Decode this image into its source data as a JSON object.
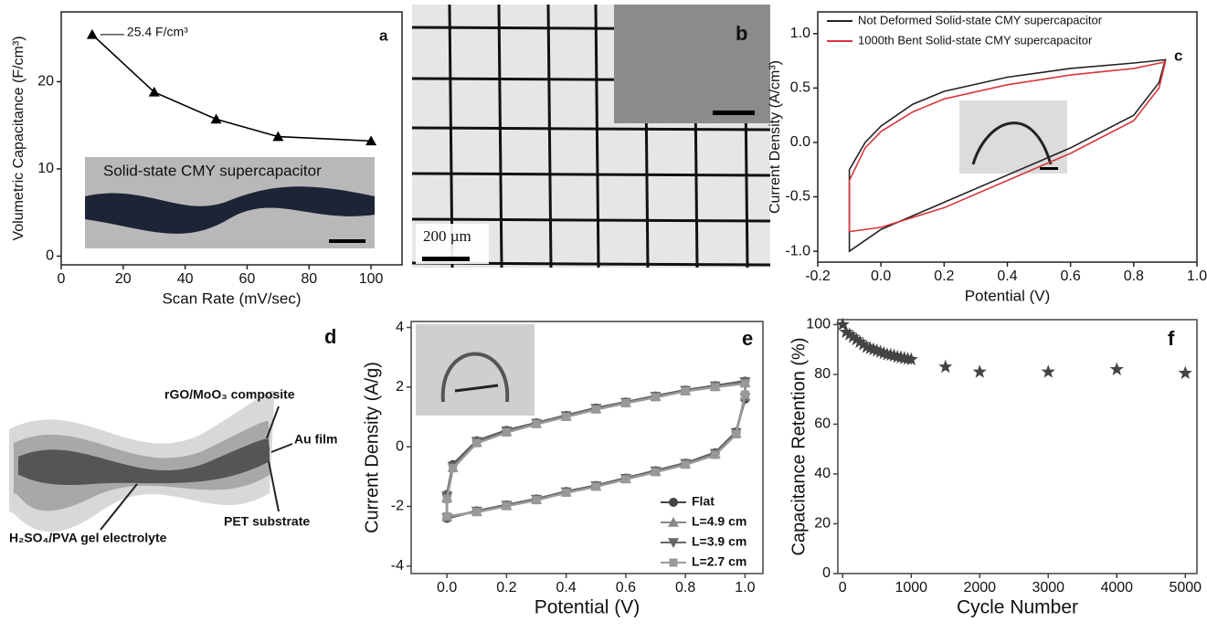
{
  "chart_data": [
    {
      "type": "line",
      "panel_label": "a",
      "xlabel": "Scan Rate (mV/sec)",
      "ylabel": "Volumetric Capacitance (F/cm³)",
      "x": [
        10,
        30,
        50,
        70,
        100
      ],
      "values": [
        25.4,
        18.8,
        15.7,
        13.7,
        13.2
      ],
      "color": "#000000",
      "marker": "triangle",
      "annotation": "25.4 F/cm³",
      "inset_label": "Solid-state CMY supercapacitor",
      "xlim": [
        0,
        110
      ],
      "xticks": [
        0,
        20,
        40,
        60,
        80,
        100
      ],
      "ylim": [
        -1,
        28
      ],
      "yticks": [
        0,
        10,
        20
      ]
    },
    {
      "type": "line",
      "panel_label": "c",
      "xlabel": "Potential (V)",
      "ylabel": "Current Density (A/cm³)",
      "x": [
        -0.1,
        -0.05,
        0,
        0.1,
        0.2,
        0.4,
        0.6,
        0.8,
        0.9,
        0.88,
        0.8,
        0.6,
        0.4,
        0.2,
        0,
        -0.1,
        -0.1
      ],
      "series": [
        {
          "name": "Not Deformed Solid-state CMY supercapacitor",
          "color": "#222222",
          "values": [
            -0.25,
            0,
            0.15,
            0.35,
            0.47,
            0.6,
            0.68,
            0.73,
            0.76,
            0.55,
            0.25,
            -0.05,
            -0.3,
            -0.55,
            -0.8,
            -1.0,
            -0.25
          ]
        },
        {
          "name": "1000th Bent Solid-state CMY supercapacitor",
          "color": "#d9363e",
          "values": [
            -0.35,
            -0.05,
            0.1,
            0.28,
            0.4,
            0.53,
            0.62,
            0.68,
            0.74,
            0.5,
            0.2,
            -0.1,
            -0.35,
            -0.6,
            -0.78,
            -0.82,
            -0.35
          ]
        }
      ],
      "legend": "upper left",
      "xlim": [
        -0.2,
        1.0
      ],
      "xticks": [
        -0.2,
        {
          "value": 0,
          "label": "0.0"
        },
        0.2,
        0.4,
        0.6,
        0.8,
        {
          "value": 1,
          "label": "1.0"
        }
      ],
      "ylim": [
        -1.1,
        1.2
      ],
      "yticks": [
        {
          "value": -1,
          "label": "-1.0"
        },
        -0.5,
        {
          "value": 0,
          "label": "0.0"
        },
        0.5,
        {
          "value": 1,
          "label": "1.0"
        }
      ]
    },
    {
      "type": "line",
      "panel_label": "e",
      "xlabel": "Potential (V)",
      "ylabel": "Current Density (A/g)",
      "x": [
        0,
        0.02,
        0.1,
        0.2,
        0.3,
        0.4,
        0.5,
        0.6,
        0.7,
        0.8,
        0.9,
        1.0,
        1.0,
        0.97,
        0.9,
        0.8,
        0.7,
        0.6,
        0.5,
        0.4,
        0.3,
        0.2,
        0.1,
        0,
        0
      ],
      "series": [
        {
          "name": "Flat",
          "color": "#444444",
          "marker": "circle",
          "values": [
            -1.6,
            -0.6,
            0.2,
            0.55,
            0.8,
            1.05,
            1.3,
            1.5,
            1.7,
            1.9,
            2.05,
            2.2,
            1.6,
            0.5,
            -0.2,
            -0.55,
            -0.8,
            -1.05,
            -1.3,
            -1.5,
            -1.75,
            -1.95,
            -2.15,
            -2.4,
            -1.6
          ]
        },
        {
          "name": "L=4.9 cm",
          "color": "#888888",
          "marker": "triangle",
          "values": [
            -1.7,
            -0.7,
            0.15,
            0.5,
            0.78,
            1.02,
            1.27,
            1.48,
            1.68,
            1.88,
            2.02,
            2.15,
            1.7,
            0.45,
            -0.25,
            -0.58,
            -0.83,
            -1.07,
            -1.32,
            -1.52,
            -1.77,
            -1.97,
            -2.17,
            -2.35,
            -1.7
          ]
        },
        {
          "name": "L=3.9 cm",
          "color": "#666666",
          "marker": "triangle-down",
          "values": [
            -1.65,
            -0.65,
            0.18,
            0.53,
            0.79,
            1.04,
            1.29,
            1.49,
            1.69,
            1.89,
            2.04,
            2.18,
            1.65,
            0.48,
            -0.22,
            -0.56,
            -0.81,
            -1.06,
            -1.31,
            -1.51,
            -1.76,
            -1.96,
            -2.16,
            -2.38,
            -1.65
          ]
        },
        {
          "name": "L=2.7 cm",
          "color": "#999999",
          "marker": "square",
          "values": [
            -1.75,
            -0.72,
            0.12,
            0.48,
            0.76,
            1.0,
            1.25,
            1.46,
            1.66,
            1.86,
            2.0,
            2.12,
            1.75,
            0.42,
            -0.27,
            -0.6,
            -0.85,
            -1.09,
            -1.34,
            -1.54,
            -1.79,
            -1.99,
            -2.19,
            -2.33,
            -1.75
          ]
        }
      ],
      "legend": "lower right",
      "xlim": [
        -0.12,
        1.06
      ],
      "xticks": [
        {
          "value": 0,
          "label": "0.0"
        },
        0.2,
        0.4,
        0.6,
        0.8,
        {
          "value": 1,
          "label": "1.0"
        }
      ],
      "ylim": [
        -4.25,
        4.2
      ],
      "yticks": [
        -4,
        -2,
        0,
        2,
        4
      ]
    },
    {
      "type": "scatter",
      "panel_label": "f",
      "xlabel": "Cycle Number",
      "ylabel": "Capacitance Retention (%)",
      "x": [
        0,
        50,
        100,
        150,
        200,
        250,
        300,
        350,
        400,
        450,
        500,
        550,
        600,
        650,
        700,
        750,
        800,
        850,
        900,
        950,
        1000,
        1500,
        2000,
        3000,
        4000,
        5000
      ],
      "values": [
        100,
        97,
        96,
        95,
        94,
        93,
        92,
        91,
        90.5,
        90,
        89.5,
        89,
        88.5,
        88,
        87.8,
        87.5,
        87,
        86.8,
        86.5,
        86.2,
        86,
        83,
        81,
        81,
        82,
        80.5
      ],
      "color": "#444444",
      "marker": "star",
      "xlim": [
        -70,
        5170
      ],
      "xticks": [
        0,
        1000,
        2000,
        3000,
        4000,
        5000
      ],
      "ylim": [
        0,
        102
      ],
      "yticks": [
        0,
        20,
        40,
        60,
        80,
        100
      ]
    }
  ],
  "panel_b": {
    "label": "b",
    "scale_text": "200 µm"
  },
  "panel_d": {
    "label": "d",
    "labels": [
      "rGO/MoO₃ composite",
      "Au film",
      "PET substrate",
      "H₂SO₄/PVA gel electrolyte"
    ]
  }
}
